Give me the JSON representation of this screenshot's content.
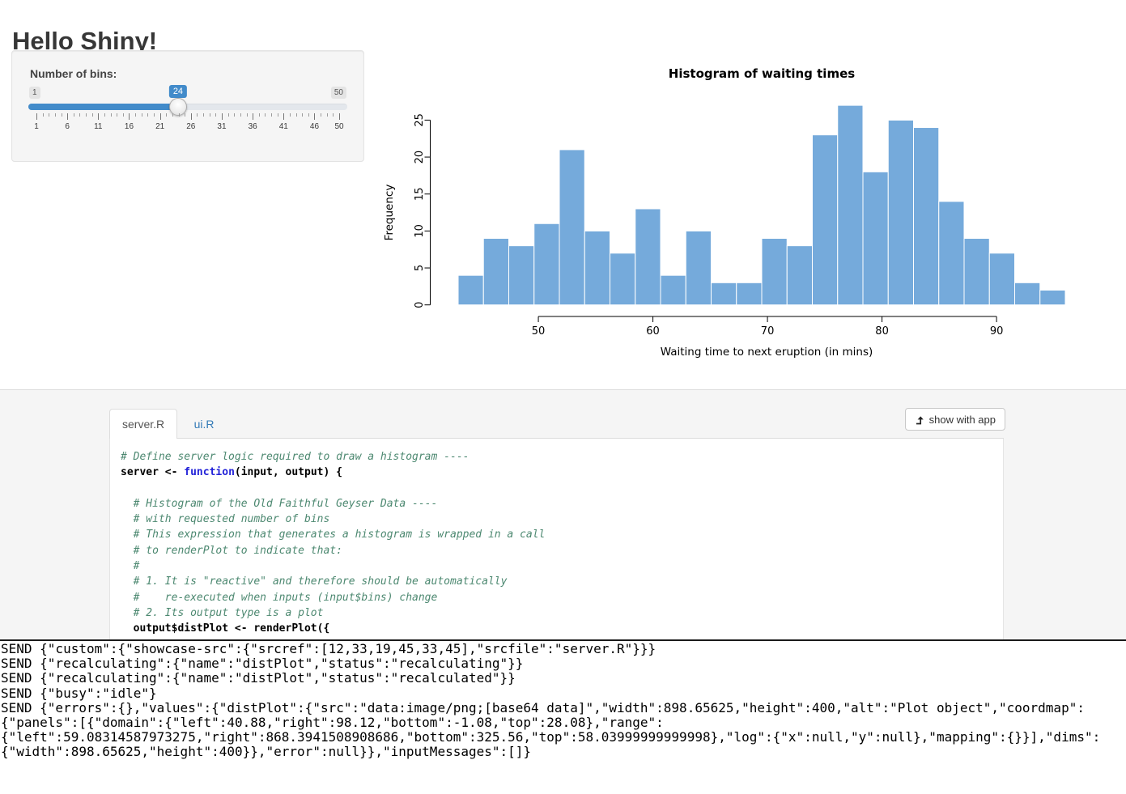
{
  "app": {
    "title": "Hello Shiny!",
    "slider": {
      "label": "Number of bins:",
      "min": 1,
      "max": 50,
      "value": 24,
      "min_label": "1",
      "max_label": "50",
      "value_label": "24",
      "grid_labels": [
        1,
        6,
        11,
        16,
        21,
        26,
        31,
        36,
        41,
        46,
        50
      ],
      "accent_color": "#428bca"
    }
  },
  "chart_data": {
    "type": "bar",
    "title": "Histogram of waiting times",
    "xlabel": "Waiting time to next eruption (in mins)",
    "ylabel": "Frequency",
    "bin_start": 43,
    "bin_end": 96,
    "values": [
      4,
      9,
      8,
      11,
      21,
      10,
      7,
      13,
      4,
      10,
      3,
      3,
      9,
      8,
      23,
      27,
      18,
      25,
      24,
      14,
      9,
      7,
      3,
      2
    ],
    "x_ticks": [
      50,
      60,
      70,
      80,
      90
    ],
    "y_ticks": [
      0,
      5,
      10,
      15,
      20,
      25
    ],
    "ylim": [
      0,
      28
    ],
    "grid": false,
    "bar_color": "#75AADB",
    "bar_border": "#FFFFFF"
  },
  "showcase": {
    "tabs": [
      {
        "label": "server.R",
        "active": true
      },
      {
        "label": "ui.R",
        "active": false
      }
    ],
    "button": {
      "label": "show with app",
      "icon": "level-up-arrow-icon"
    },
    "code_lines": [
      [
        [
          "com",
          "# Define server logic required to draw a histogram ----"
        ]
      ],
      [
        [
          "plain",
          "server <- "
        ],
        [
          "kw",
          "function"
        ],
        [
          "plain",
          "(input, output) {"
        ]
      ],
      [],
      [
        [
          "com",
          "  # Histogram of the Old Faithful Geyser Data ----"
        ]
      ],
      [
        [
          "com",
          "  # with requested number of bins"
        ]
      ],
      [
        [
          "com",
          "  # This expression that generates a histogram is wrapped in a call"
        ]
      ],
      [
        [
          "com",
          "  # to renderPlot to indicate that:"
        ]
      ],
      [
        [
          "com",
          "  #"
        ]
      ],
      [
        [
          "com",
          "  # 1. It is \"reactive\" and therefore should be automatically"
        ]
      ],
      [
        [
          "com",
          "  #    re-executed when inputs (input$bins) change"
        ]
      ],
      [
        [
          "com",
          "  # 2. Its output type is a plot"
        ]
      ],
      [
        [
          "plain",
          "  output$distPlot <- renderPlot({"
        ]
      ]
    ]
  },
  "console": {
    "lines": [
      "SEND {\"custom\":{\"showcase-src\":{\"srcref\":[12,33,19,45,33,45],\"srcfile\":\"server.R\"}}}",
      "SEND {\"recalculating\":{\"name\":\"distPlot\",\"status\":\"recalculating\"}}",
      "SEND {\"recalculating\":{\"name\":\"distPlot\",\"status\":\"recalculated\"}}",
      "SEND {\"busy\":\"idle\"}",
      "SEND {\"errors\":{},\"values\":{\"distPlot\":{\"src\":\"data:image/png;[base64 data]\",\"width\":898.65625,\"height\":400,\"alt\":\"Plot object\",\"coordmap\":",
      "{\"panels\":[{\"domain\":{\"left\":40.88,\"right\":98.12,\"bottom\":-1.08,\"top\":28.08},\"range\":",
      "{\"left\":59.08314587973275,\"right\":868.3941508908686,\"bottom\":325.56,\"top\":58.03999999999998},\"log\":{\"x\":null,\"y\":null},\"mapping\":{}}],\"dims\":",
      "{\"width\":898.65625,\"height\":400}},\"error\":null}},\"inputMessages\":[]}"
    ]
  }
}
